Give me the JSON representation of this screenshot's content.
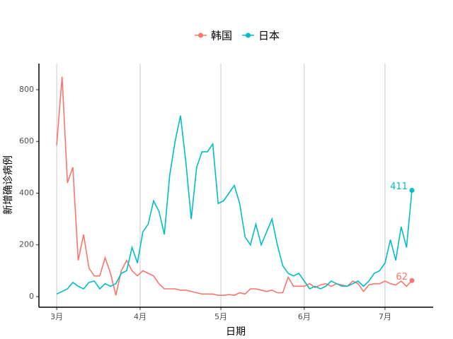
{
  "chart_data": {
    "type": "line",
    "x_label": "日期",
    "y_label": "新增确诊病例",
    "x": [
      0,
      2,
      4,
      6,
      8,
      10,
      12,
      14,
      16,
      18,
      20,
      22,
      24,
      26,
      28,
      30,
      32,
      34,
      36,
      38,
      40,
      42,
      44,
      46,
      48,
      50,
      52,
      54,
      56,
      58,
      60,
      62,
      64,
      66,
      68,
      70,
      72,
      74,
      76,
      78,
      80,
      82,
      84,
      86,
      88,
      90,
      92,
      94,
      96,
      98,
      100,
      102,
      104,
      106,
      108,
      110,
      112,
      114,
      116,
      118,
      120,
      122,
      124,
      126,
      128,
      130,
      132
    ],
    "series": [
      {
        "name": "韩国",
        "color": "#F8766D",
        "values": [
          585,
          850,
          440,
          500,
          140,
          240,
          110,
          80,
          80,
          150,
          90,
          5,
          100,
          140,
          100,
          80,
          100,
          90,
          80,
          50,
          30,
          30,
          30,
          25,
          25,
          20,
          15,
          10,
          10,
          10,
          5,
          5,
          8,
          5,
          15,
          10,
          30,
          30,
          25,
          20,
          25,
          15,
          15,
          75,
          40,
          40,
          40,
          50,
          35,
          45,
          50,
          40,
          50,
          45,
          40,
          60,
          50,
          20,
          45,
          50,
          50,
          60,
          50,
          45,
          60,
          40,
          62
        ]
      },
      {
        "name": "日本",
        "color": "#00BFC4",
        "values": [
          10,
          20,
          30,
          55,
          40,
          30,
          55,
          60,
          30,
          50,
          40,
          50,
          90,
          100,
          190,
          130,
          250,
          280,
          370,
          330,
          240,
          470,
          600,
          700,
          520,
          300,
          500,
          560,
          560,
          590,
          360,
          370,
          400,
          430,
          360,
          230,
          200,
          280,
          200,
          250,
          300,
          200,
          120,
          90,
          80,
          90,
          60,
          30,
          40,
          30,
          40,
          60,
          50,
          40,
          40,
          50,
          60,
          40,
          60,
          90,
          100,
          130,
          220,
          140,
          270,
          190,
          411
        ]
      }
    ],
    "xlim": [
      -6.6,
      139.9
    ],
    "xticks": [
      {
        "value": 0,
        "label": "3月"
      },
      {
        "value": 31,
        "label": "4月"
      },
      {
        "value": 61,
        "label": "5月"
      },
      {
        "value": 92,
        "label": "6月"
      },
      {
        "value": 122,
        "label": "7月"
      }
    ],
    "ylim": [
      -41,
      901
    ],
    "yticks": [
      0,
      200,
      400,
      600,
      800
    ],
    "grid": "x"
  }
}
